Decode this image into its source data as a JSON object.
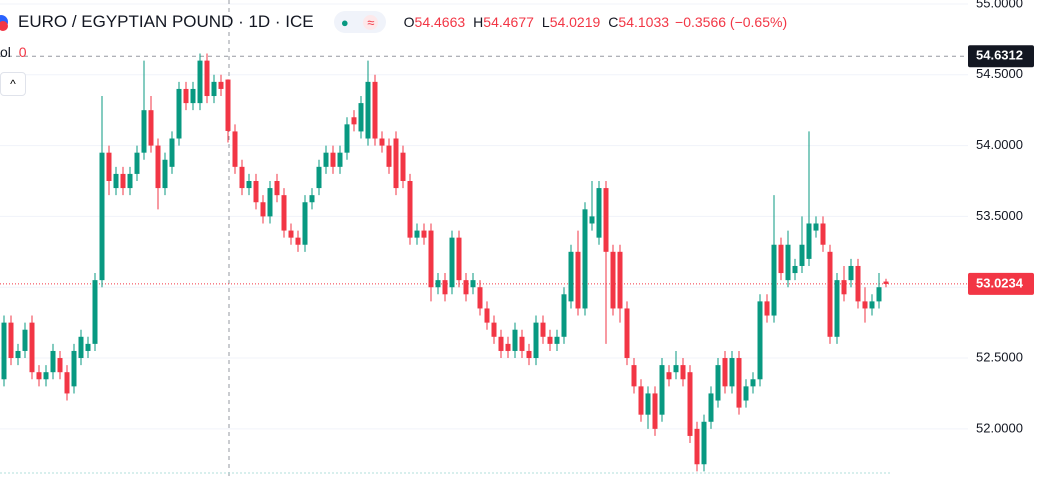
{
  "header": {
    "title": "EURO / EGYPTIAN POUND · 1D · ICE",
    "ohlc": [
      {
        "label": "O",
        "value": "54.4663"
      },
      {
        "label": "H",
        "value": "54.4677"
      },
      {
        "label": "L",
        "value": "54.0219"
      },
      {
        "label": "C",
        "value": "54.1033"
      }
    ],
    "change": "−0.3566 (−0.65%)",
    "volume": {
      "label": "ol",
      "value": "0"
    }
  },
  "chart_data": {
    "type": "candlestick",
    "up_color": "#089981",
    "down_color": "#f23645",
    "ylim": [
      51.66,
      55.028
    ],
    "yticks": [
      {
        "value": 52,
        "label": "52.0000"
      },
      {
        "value": 52.5,
        "label": "52.5000"
      },
      {
        "value": 53,
        "label": "53.0000"
      },
      {
        "value": 53.5,
        "label": "53.5000"
      },
      {
        "value": 54,
        "label": "54.0000"
      },
      {
        "value": 54.5,
        "label": "54.5000"
      },
      {
        "value": 55,
        "label": "55.0000"
      }
    ],
    "grid": true,
    "crosshair_price": 54.6312,
    "last_price": 53.0234,
    "open": [
      52.35,
      52.75,
      52.5,
      52.55,
      52.75,
      52.4,
      52.35,
      52.4,
      52.5,
      52.4,
      52.3,
      52.5,
      52.55,
      52.6,
      53.05,
      53.95,
      53.7,
      53.8,
      53.7,
      53.8,
      53.95,
      54.25,
      54.0,
      53.7,
      53.85,
      54.05,
      54.4,
      54.3,
      54.3,
      54.6,
      54.35,
      54.45,
      54.4663,
      54.1,
      53.85,
      53.7,
      53.75,
      53.6,
      53.5,
      53.75,
      53.65,
      53.4,
      53.35,
      53.3,
      53.6,
      53.7,
      53.85,
      53.95,
      53.85,
      53.95,
      54.2,
      54.1,
      54.05,
      54.45,
      54.05,
      54.0,
      54.05,
      53.95,
      53.75,
      53.35,
      53.4,
      53.4,
      53.0,
      53.05,
      53.0,
      53.35,
      53.05,
      53.0,
      53.0,
      52.85,
      52.75,
      52.65,
      52.6,
      52.55,
      52.65,
      52.55,
      52.5,
      52.75,
      52.65,
      52.6,
      52.65,
      52.9,
      53.25,
      52.85,
      53.45,
      53.35,
      53.7,
      53.25,
      53.25,
      52.85,
      52.45,
      52.3,
      52.1,
      52.25,
      52.1,
      52.4,
      52.4,
      52.45,
      52.4,
      52.0,
      51.75,
      52.05,
      52.2,
      52.5,
      52.3,
      52.5,
      52.2,
      52.3,
      52.35,
      52.9,
      52.8,
      53.3,
      53.05,
      53.1,
      53.15,
      53.2,
      53.4,
      53.45,
      53.25,
      52.65,
      53.05,
      53.05,
      53.15,
      52.9,
      52.85,
      52.9,
      53.04
    ],
    "high": [
      52.8,
      52.8,
      52.6,
      52.75,
      52.8,
      52.45,
      52.45,
      52.6,
      52.55,
      52.45,
      52.6,
      52.7,
      52.65,
      53.1,
      54.35,
      54.0,
      53.85,
      53.85,
      53.85,
      54.0,
      54.6,
      54.35,
      54.05,
      53.95,
      54.1,
      54.45,
      54.45,
      54.45,
      54.65,
      54.65,
      54.5,
      54.5,
      54.4677,
      54.15,
      53.9,
      53.8,
      53.8,
      53.65,
      53.75,
      53.8,
      53.7,
      53.45,
      53.4,
      53.65,
      53.7,
      53.9,
      54.0,
      54.0,
      54.0,
      54.2,
      54.25,
      54.35,
      54.6,
      54.5,
      54.1,
      54.05,
      54.1,
      54.0,
      53.8,
      53.45,
      53.45,
      53.45,
      53.1,
      53.1,
      53.4,
      53.4,
      53.1,
      53.1,
      53.05,
      52.9,
      52.8,
      52.7,
      52.65,
      52.75,
      52.7,
      52.6,
      52.8,
      52.8,
      52.7,
      52.7,
      53.0,
      53.3,
      53.4,
      53.6,
      53.75,
      53.75,
      53.75,
      53.3,
      53.3,
      52.9,
      52.5,
      52.35,
      52.3,
      52.3,
      52.5,
      52.45,
      52.55,
      52.5,
      52.45,
      52.05,
      52.1,
      52.3,
      52.5,
      52.55,
      52.55,
      52.55,
      52.35,
      52.4,
      52.95,
      52.95,
      53.65,
      53.35,
      53.4,
      53.2,
      53.5,
      54.1,
      53.5,
      53.5,
      53.3,
      53.1,
      53.15,
      53.2,
      53.2,
      53.0,
      52.95,
      53.1,
      53.06
    ],
    "low": [
      52.3,
      52.45,
      52.45,
      52.5,
      52.35,
      52.3,
      52.3,
      52.35,
      52.35,
      52.2,
      52.25,
      52.45,
      52.5,
      52.55,
      53.0,
      53.65,
      53.65,
      53.65,
      53.65,
      53.75,
      53.9,
      53.95,
      53.55,
      53.65,
      53.8,
      54.0,
      54.25,
      54.25,
      54.25,
      54.3,
      54.3,
      54.35,
      54.0219,
      53.8,
      53.65,
      53.65,
      53.55,
      53.45,
      53.45,
      53.6,
      53.35,
      53.3,
      53.25,
      53.25,
      53.55,
      53.65,
      53.8,
      53.8,
      53.8,
      53.9,
      54.1,
      54.05,
      54.0,
      54.0,
      53.95,
      53.8,
      53.65,
      53.7,
      53.3,
      53.3,
      53.3,
      52.9,
      52.95,
      52.9,
      52.95,
      53.0,
      52.9,
      52.95,
      52.8,
      52.7,
      52.6,
      52.5,
      52.5,
      52.5,
      52.5,
      52.45,
      52.45,
      52.6,
      52.55,
      52.55,
      52.6,
      52.85,
      52.8,
      52.8,
      53.4,
      53.3,
      52.6,
      52.8,
      52.75,
      52.45,
      52.25,
      52.05,
      52.0,
      51.95,
      52.05,
      52.3,
      52.35,
      52.3,
      51.9,
      51.7,
      51.7,
      52.0,
      52.15,
      52.25,
      52.25,
      52.1,
      52.15,
      52.25,
      52.3,
      52.75,
      52.75,
      53.05,
      53.0,
      53.05,
      53.1,
      53.15,
      53.35,
      53.25,
      52.6,
      52.6,
      52.9,
      53.0,
      52.85,
      52.75,
      52.8,
      52.85,
      53.0
    ],
    "close": [
      52.75,
      52.5,
      52.55,
      52.7,
      52.4,
      52.35,
      52.4,
      52.55,
      52.4,
      52.25,
      52.55,
      52.65,
      52.6,
      53.05,
      53.95,
      53.75,
      53.8,
      53.7,
      53.8,
      53.95,
      54.25,
      54.0,
      53.7,
      53.9,
      54.05,
      54.4,
      54.3,
      54.4,
      54.6,
      54.35,
      54.45,
      54.4,
      54.1033,
      53.85,
      53.7,
      53.75,
      53.6,
      53.5,
      53.7,
      53.65,
      53.4,
      53.35,
      53.3,
      53.6,
      53.65,
      53.85,
      53.95,
      53.85,
      53.95,
      54.15,
      54.15,
      54.3,
      54.45,
      54.05,
      54.0,
      53.85,
      53.7,
      53.75,
      53.35,
      53.4,
      53.35,
      53.0,
      53.05,
      52.95,
      53.35,
      53.05,
      52.95,
      53.05,
      52.85,
      52.75,
      52.65,
      52.55,
      52.55,
      52.7,
      52.55,
      52.5,
      52.75,
      52.65,
      52.6,
      52.65,
      52.95,
      53.25,
      52.85,
      53.55,
      53.5,
      53.7,
      53.25,
      52.85,
      52.85,
      52.5,
      52.3,
      52.1,
      52.25,
      52.0,
      52.45,
      52.35,
      52.45,
      52.35,
      51.95,
      51.75,
      52.05,
      52.25,
      52.45,
      52.3,
      52.5,
      52.15,
      52.3,
      52.35,
      52.9,
      52.8,
      53.3,
      53.1,
      53.3,
      53.15,
      53.3,
      53.45,
      53.45,
      53.3,
      52.65,
      53.05,
      52.95,
      53.15,
      52.9,
      52.85,
      52.9,
      53.0,
      53.0234
    ]
  }
}
